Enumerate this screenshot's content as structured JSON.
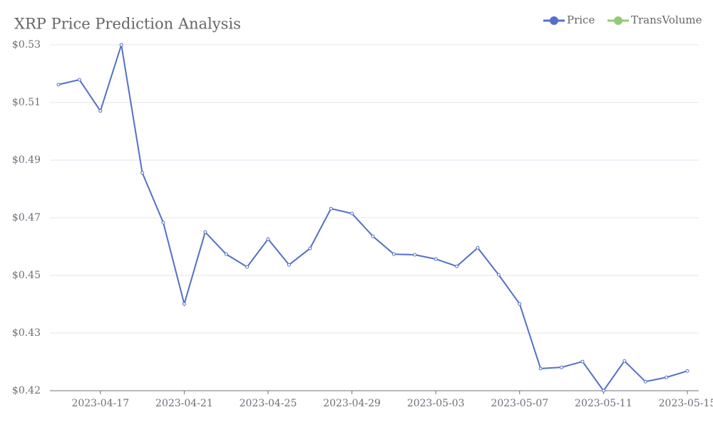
{
  "chart_data": {
    "type": "line",
    "title": "XRP Price Prediction Analysis",
    "x": [
      "2023-04-15",
      "2023-04-16",
      "2023-04-17",
      "2023-04-18",
      "2023-04-19",
      "2023-04-20",
      "2023-04-21",
      "2023-04-22",
      "2023-04-23",
      "2023-04-24",
      "2023-04-25",
      "2023-04-26",
      "2023-04-27",
      "2023-04-28",
      "2023-04-29",
      "2023-04-30",
      "2023-05-01",
      "2023-05-02",
      "2023-05-03",
      "2023-05-04",
      "2023-05-05",
      "2023-05-06",
      "2023-05-07",
      "2023-05-08",
      "2023-05-09",
      "2023-05-10",
      "2023-05-11",
      "2023-05-12",
      "2023-05-13",
      "2023-05-14",
      "2023-05-15"
    ],
    "xticks": [
      "2023-04-17",
      "2023-04-21",
      "2023-04-25",
      "2023-04-29",
      "2023-05-03",
      "2023-05-07",
      "2023-05-11",
      "2023-05-15"
    ],
    "series": [
      {
        "name": "Price",
        "color": "#5470c6",
        "values": [
          0.5167,
          0.5183,
          0.508,
          0.5298,
          0.4876,
          0.4712,
          0.4444,
          0.4681,
          0.4608,
          0.4566,
          0.4658,
          0.4573,
          0.4627,
          0.4758,
          0.4742,
          0.4667,
          0.4608,
          0.4606,
          0.4592,
          0.4568,
          0.4629,
          0.454,
          0.4444,
          0.4231,
          0.4235,
          0.4254,
          0.4158,
          0.4256,
          0.4188,
          0.4202,
          0.4223
        ]
      },
      {
        "name": "TransVolume",
        "color": "#91cc75",
        "values": [
          null,
          null,
          null,
          null,
          null,
          null,
          null,
          null,
          null,
          null,
          null,
          null,
          null,
          null,
          null,
          null,
          null,
          null,
          null,
          null,
          null,
          null,
          null,
          null,
          null,
          null,
          null,
          null,
          null,
          null,
          null
        ]
      }
    ],
    "ylim": [
      0.4158,
      0.5298
    ],
    "yticks": [
      {
        "value": 0.5298,
        "label": "$0.53"
      },
      {
        "value": 0.5108,
        "label": "$0.51"
      },
      {
        "value": 0.4918,
        "label": "$0.49"
      },
      {
        "value": 0.4728,
        "label": "$0.47"
      },
      {
        "value": 0.4538,
        "label": "$0.45"
      },
      {
        "value": 0.4348,
        "label": "$0.43"
      },
      {
        "value": 0.4158,
        "label": "$0.42"
      }
    ],
    "grid": true,
    "legend": "top-right"
  }
}
